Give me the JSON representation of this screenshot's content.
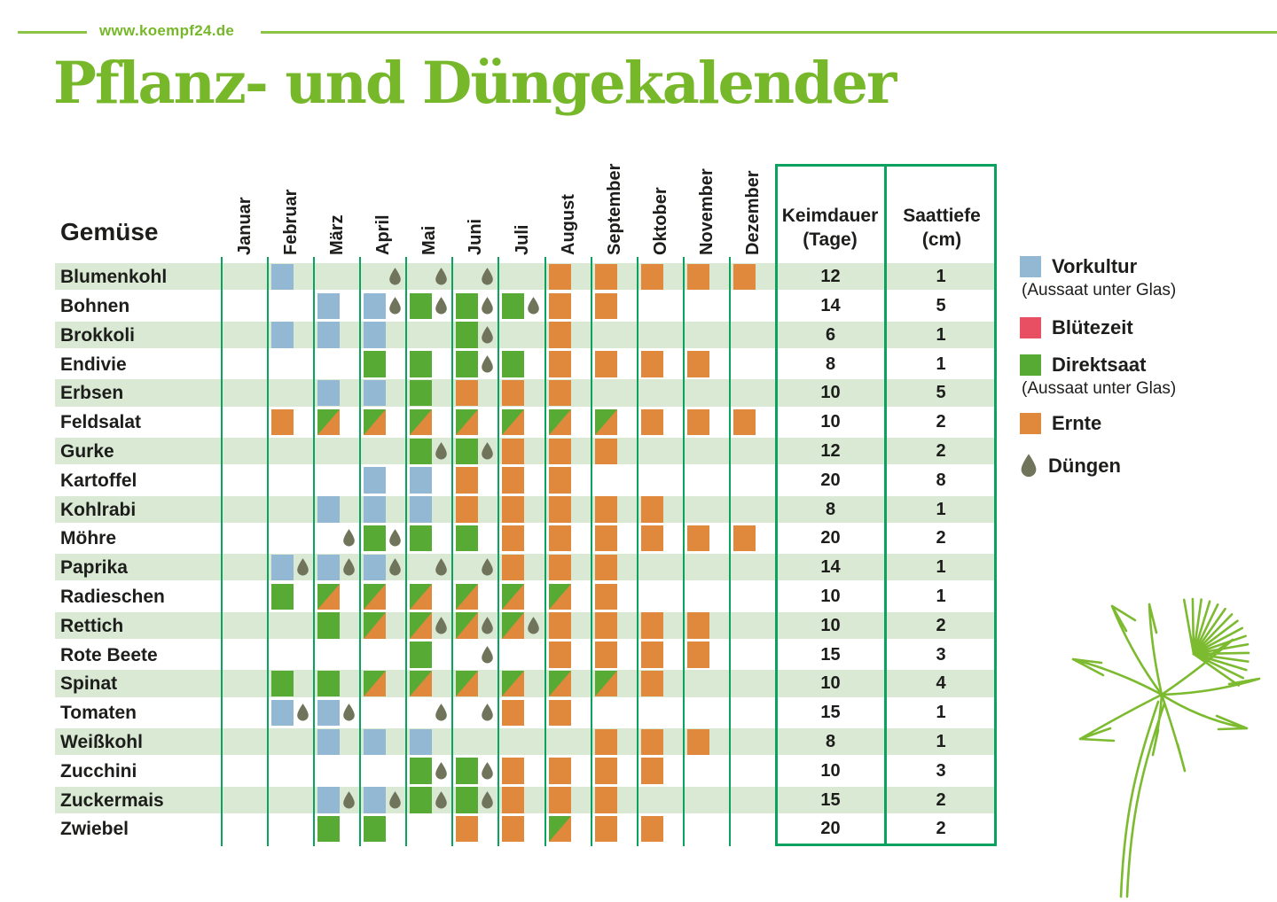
{
  "brand": {
    "url_label": "www.koempf24.de",
    "title": "Pflanz- und Düngekalender"
  },
  "colors": {
    "brand_green": "#76b82a",
    "rule_green": "#8cc445",
    "line_green": "#0aa25e",
    "row_tint": "#d9e9d4",
    "vorkultur": "#92b8d4",
    "bluetezeit": "#e84f62",
    "direktsaat": "#57ab35",
    "ernte": "#e0883b",
    "duengen": "#70745a",
    "text": "#1d1d1b",
    "plant_green": "#7cba2f"
  },
  "chart_data": {
    "type": "heatmap",
    "title": "Pflanz- und Düngekalender",
    "resolution": "half-month",
    "row_header": "Gemüse",
    "months": [
      "Januar",
      "Februar",
      "März",
      "April",
      "Mai",
      "Juni",
      "Juli",
      "August",
      "September",
      "Oktober",
      "November",
      "Dezember"
    ],
    "month_codes": [
      "Jan",
      "Feb",
      "Mrz",
      "Apr",
      "Mai",
      "Jun",
      "Jul",
      "Aug",
      "Sep",
      "Okt",
      "Nov",
      "Dez"
    ],
    "value_columns": [
      {
        "title": "Keimdauer",
        "unit": "(Tage)"
      },
      {
        "title": "Saattiefe",
        "unit": "(cm)"
      }
    ],
    "cell_types": {
      "vorkultur": "Vorkultur (Aussaat unter Glas)",
      "direktsaat": "Direktsaat",
      "mix": "Direktsaat + Ernte",
      "ernte": "Ernte",
      "duengen": "Düngen"
    },
    "rows": [
      {
        "name": "Blumenkohl",
        "keimdauer": 12,
        "saattiefe": 1,
        "vorkultur": [
          "Feb1"
        ],
        "direktsaat": [],
        "mix": [],
        "ernte": [
          "Aug1",
          "Sep1",
          "Okt1",
          "Nov1",
          "Dez1"
        ],
        "duengen": [
          "Apr2",
          "Mai2",
          "Jun2"
        ]
      },
      {
        "name": "Bohnen",
        "keimdauer": 14,
        "saattiefe": 5,
        "vorkultur": [
          "Mrz1",
          "Apr1"
        ],
        "direktsaat": [
          "Mai1",
          "Jun1",
          "Jul1"
        ],
        "mix": [],
        "ernte": [
          "Aug1",
          "Sep1"
        ],
        "duengen": [
          "Apr2",
          "Mai2",
          "Jun2",
          "Jul2"
        ]
      },
      {
        "name": "Brokkoli",
        "keimdauer": 6,
        "saattiefe": 1,
        "vorkultur": [
          "Feb1",
          "Mrz1",
          "Apr1"
        ],
        "direktsaat": [
          "Jun1"
        ],
        "mix": [],
        "ernte": [
          "Aug1"
        ],
        "duengen": [
          "Jun2"
        ]
      },
      {
        "name": "Endivie",
        "keimdauer": 8,
        "saattiefe": 1,
        "vorkultur": [],
        "direktsaat": [
          "Apr1",
          "Mai1",
          "Jun1",
          "Jul1"
        ],
        "mix": [],
        "ernte": [
          "Aug1",
          "Sep1",
          "Okt1",
          "Nov1"
        ],
        "duengen": [
          "Jun2"
        ]
      },
      {
        "name": "Erbsen",
        "keimdauer": 10,
        "saattiefe": 5,
        "vorkultur": [
          "Mrz1",
          "Apr1"
        ],
        "direktsaat": [
          "Mai1"
        ],
        "mix": [],
        "ernte": [
          "Jun1",
          "Jul1",
          "Aug1"
        ],
        "duengen": []
      },
      {
        "name": "Feldsalat",
        "keimdauer": 10,
        "saattiefe": 2,
        "vorkultur": [],
        "direktsaat": [],
        "mix": [
          "Mrz1",
          "Apr1",
          "Mai1",
          "Jun1",
          "Jul1",
          "Aug1",
          "Sep1"
        ],
        "ernte": [
          "Feb1",
          "Okt1",
          "Nov1",
          "Dez1"
        ],
        "duengen": []
      },
      {
        "name": "Gurke",
        "keimdauer": 12,
        "saattiefe": 2,
        "vorkultur": [],
        "direktsaat": [
          "Mai1",
          "Jun1"
        ],
        "mix": [],
        "ernte": [
          "Jul1",
          "Aug1",
          "Sep1"
        ],
        "duengen": [
          "Mai2",
          "Jun2"
        ]
      },
      {
        "name": "Kartoffel",
        "keimdauer": 20,
        "saattiefe": 8,
        "vorkultur": [
          "Apr1",
          "Mai1"
        ],
        "direktsaat": [],
        "mix": [],
        "ernte": [
          "Jun1",
          "Jul1",
          "Aug1"
        ],
        "duengen": []
      },
      {
        "name": "Kohlrabi",
        "keimdauer": 8,
        "saattiefe": 1,
        "vorkultur": [
          "Mrz1",
          "Apr1",
          "Mai1"
        ],
        "direktsaat": [],
        "mix": [],
        "ernte": [
          "Jun1",
          "Jul1",
          "Aug1",
          "Sep1",
          "Okt1"
        ],
        "duengen": []
      },
      {
        "name": "Möhre",
        "keimdauer": 20,
        "saattiefe": 2,
        "vorkultur": [],
        "direktsaat": [
          "Apr1",
          "Mai1",
          "Jun1"
        ],
        "mix": [],
        "ernte": [
          "Jul1",
          "Aug1",
          "Sep1",
          "Okt1",
          "Nov1",
          "Dez1"
        ],
        "duengen": [
          "Mrz2",
          "Apr2"
        ]
      },
      {
        "name": "Paprika",
        "keimdauer": 14,
        "saattiefe": 1,
        "vorkultur": [
          "Feb1",
          "Mrz1",
          "Apr1"
        ],
        "direktsaat": [],
        "mix": [],
        "ernte": [
          "Jul1",
          "Aug1",
          "Sep1"
        ],
        "duengen": [
          "Feb2",
          "Mrz2",
          "Apr2",
          "Mai2",
          "Jun2"
        ]
      },
      {
        "name": "Radieschen",
        "keimdauer": 10,
        "saattiefe": 1,
        "vorkultur": [],
        "direktsaat": [
          "Feb1"
        ],
        "mix": [
          "Mrz1",
          "Apr1",
          "Mai1",
          "Jun1",
          "Jul1",
          "Aug1"
        ],
        "ernte": [
          "Sep1"
        ],
        "duengen": []
      },
      {
        "name": "Rettich",
        "keimdauer": 10,
        "saattiefe": 2,
        "vorkultur": [],
        "direktsaat": [
          "Mrz1"
        ],
        "mix": [
          "Apr1",
          "Mai1",
          "Jun1",
          "Jul1"
        ],
        "ernte": [
          "Aug1",
          "Sep1",
          "Okt1",
          "Nov1"
        ],
        "duengen": [
          "Mai2",
          "Jun2",
          "Jul2"
        ]
      },
      {
        "name": "Rote Beete",
        "keimdauer": 15,
        "saattiefe": 3,
        "vorkultur": [],
        "direktsaat": [
          "Mai1"
        ],
        "mix": [],
        "ernte": [
          "Aug1",
          "Sep1",
          "Okt1",
          "Nov1"
        ],
        "duengen": [
          "Jun2"
        ]
      },
      {
        "name": "Spinat",
        "keimdauer": 10,
        "saattiefe": 4,
        "vorkultur": [],
        "direktsaat": [
          "Feb1",
          "Mrz1"
        ],
        "mix": [
          "Apr1",
          "Mai1",
          "Jun1",
          "Jul1",
          "Aug1",
          "Sep1"
        ],
        "ernte": [
          "Okt1"
        ],
        "duengen": []
      },
      {
        "name": "Tomaten",
        "keimdauer": 15,
        "saattiefe": 1,
        "vorkultur": [
          "Feb1",
          "Mrz1"
        ],
        "direktsaat": [],
        "mix": [],
        "ernte": [
          "Jul1",
          "Aug1"
        ],
        "duengen": [
          "Feb2",
          "Mrz2",
          "Mai2",
          "Jun2"
        ]
      },
      {
        "name": "Weißkohl",
        "keimdauer": 8,
        "saattiefe": 1,
        "vorkultur": [
          "Mrz1",
          "Apr1",
          "Mai1"
        ],
        "direktsaat": [],
        "mix": [],
        "ernte": [
          "Sep1",
          "Okt1",
          "Nov1"
        ],
        "duengen": []
      },
      {
        "name": "Zucchini",
        "keimdauer": 10,
        "saattiefe": 3,
        "vorkultur": [],
        "direktsaat": [
          "Mai1",
          "Jun1"
        ],
        "mix": [],
        "ernte": [
          "Jul1",
          "Aug1",
          "Sep1",
          "Okt1"
        ],
        "duengen": [
          "Mai2",
          "Jun2"
        ]
      },
      {
        "name": "Zuckermais",
        "keimdauer": 15,
        "saattiefe": 2,
        "vorkultur": [
          "Mrz1",
          "Apr1"
        ],
        "direktsaat": [
          "Mai1",
          "Jun1"
        ],
        "mix": [],
        "ernte": [
          "Jul1",
          "Aug1",
          "Sep1"
        ],
        "duengen": [
          "Mrz2",
          "Apr2",
          "Mai2",
          "Jun2"
        ]
      },
      {
        "name": "Zwiebel",
        "keimdauer": 20,
        "saattiefe": 2,
        "vorkultur": [],
        "direktsaat": [
          "Mrz1",
          "Apr1"
        ],
        "mix": [
          "Aug1"
        ],
        "ernte": [
          "Jun1",
          "Jul1",
          "Sep1",
          "Okt1"
        ],
        "duengen": []
      }
    ]
  },
  "legend": {
    "items": [
      {
        "key": "vorkultur",
        "shape": "square",
        "color": "#92b8d4",
        "label": "Vorkultur",
        "sublabel": "(Aussaat unter Glas)"
      },
      {
        "key": "bluetezeit",
        "shape": "square",
        "color": "#e84f62",
        "label": "Blütezeit",
        "sublabel": ""
      },
      {
        "key": "direktsaat",
        "shape": "square",
        "color": "#57ab35",
        "label": "Direktsaat",
        "sublabel": "(Aussaat unter Glas)"
      },
      {
        "key": "ernte",
        "shape": "square",
        "color": "#e0883b",
        "label": "Ernte",
        "sublabel": ""
      },
      {
        "key": "duengen",
        "shape": "drop",
        "color": "#70745a",
        "label": "Düngen",
        "sublabel": ""
      }
    ]
  }
}
